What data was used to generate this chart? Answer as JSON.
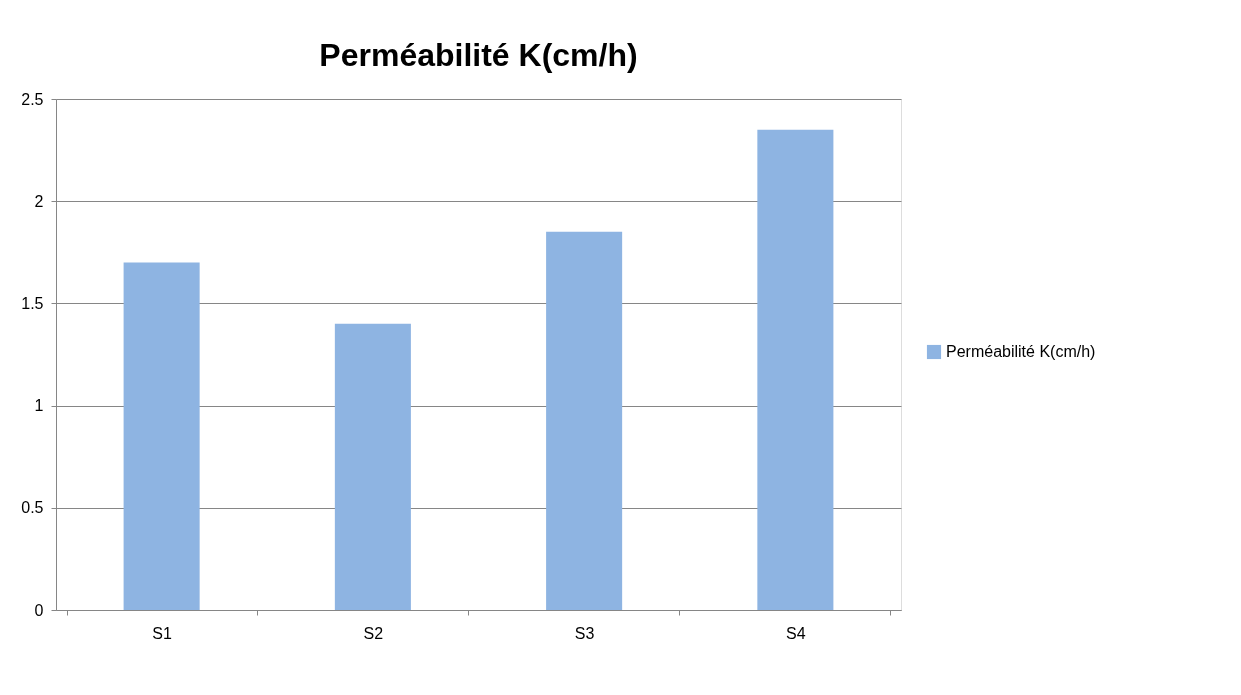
{
  "chart_data": {
    "type": "bar",
    "title": "Perméabilité K(cm/h)",
    "categories": [
      "S1",
      "S2",
      "S3",
      "S4"
    ],
    "series": [
      {
        "name": "Perméabilité K(cm/h)",
        "color": "#8eb4e2",
        "values": [
          1.7,
          1.4,
          1.85,
          2.35
        ]
      }
    ],
    "ylim": [
      0,
      2.5
    ],
    "yticks": [
      0,
      0.5,
      1,
      1.5,
      2,
      2.5
    ],
    "grid": "y",
    "legend": "right"
  }
}
